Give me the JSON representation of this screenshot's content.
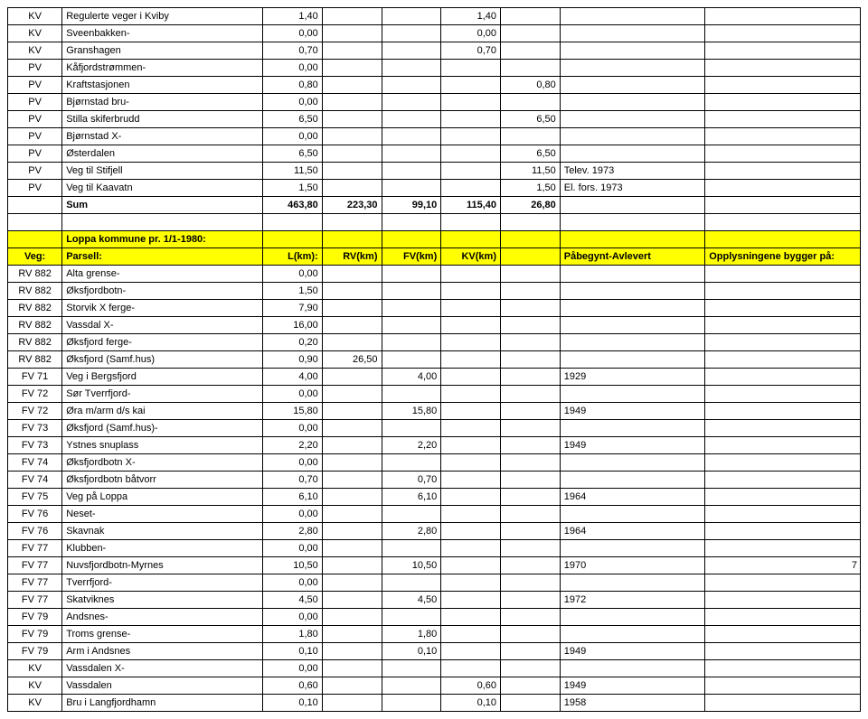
{
  "colors": {
    "header_bg": "#ffff00",
    "border": "#000000",
    "bg": "#ffffff",
    "text": "#000000"
  },
  "font": {
    "family": "Arial",
    "size_pt": 8
  },
  "columns": [
    "Veg:",
    "Parsell:",
    "L(km):",
    "RV(km)",
    "FV(km)",
    "KV(km)",
    "",
    "Påbegynt-Avlevert",
    "Opplysningene bygger på:"
  ],
  "page_number": "7",
  "section1": {
    "rows": [
      [
        "KV",
        "Regulerte veger i Kviby",
        "1,40",
        "",
        "",
        "1,40",
        "",
        "",
        ""
      ],
      [
        "KV",
        "Sveenbakken-",
        "0,00",
        "",
        "",
        "0,00",
        "",
        "",
        ""
      ],
      [
        "KV",
        "Granshagen",
        "0,70",
        "",
        "",
        "0,70",
        "",
        "",
        ""
      ],
      [
        "PV",
        "Kåfjordstrømmen-",
        "0,00",
        "",
        "",
        "",
        "",
        "",
        ""
      ],
      [
        "PV",
        "Kraftstasjonen",
        "0,80",
        "",
        "",
        "",
        "0,80",
        "",
        ""
      ],
      [
        "PV",
        "Bjørnstad bru-",
        "0,00",
        "",
        "",
        "",
        "",
        "",
        ""
      ],
      [
        "PV",
        "Stilla skiferbrudd",
        "6,50",
        "",
        "",
        "",
        "6,50",
        "",
        ""
      ],
      [
        "PV",
        "Bjørnstad X-",
        "0,00",
        "",
        "",
        "",
        "",
        "",
        ""
      ],
      [
        "PV",
        "Østerdalen",
        "6,50",
        "",
        "",
        "",
        "6,50",
        "",
        ""
      ],
      [
        "PV",
        "Veg til Stifjell",
        "11,50",
        "",
        "",
        "",
        "11,50",
        "Telev. 1973",
        ""
      ],
      [
        "PV",
        "Veg til Kaavatn",
        "1,50",
        "",
        "",
        "",
        "1,50",
        "El. fors. 1973",
        ""
      ]
    ],
    "sumrow": [
      "",
      "Sum",
      "463,80",
      "223,30",
      "99,10",
      "115,40",
      "26,80",
      "",
      ""
    ]
  },
  "section2": {
    "title": "Loppa kommune pr. 1/1-1980:",
    "header": [
      "Veg:",
      "Parsell:",
      "L(km):",
      "RV(km)",
      "FV(km)",
      "KV(km)",
      "",
      "Påbegynt-Avlevert",
      "Opplysningene bygger på:"
    ],
    "rows": [
      [
        "RV 882",
        "Alta grense-",
        "0,00",
        "",
        "",
        "",
        "",
        "",
        ""
      ],
      [
        "RV 882",
        "Øksfjordbotn-",
        "1,50",
        "",
        "",
        "",
        "",
        "",
        ""
      ],
      [
        "RV 882",
        "Storvik X ferge-",
        "7,90",
        "",
        "",
        "",
        "",
        "",
        ""
      ],
      [
        "RV 882",
        "Vassdal X-",
        "16,00",
        "",
        "",
        "",
        "",
        "",
        ""
      ],
      [
        "RV 882",
        "Øksfjord ferge-",
        "0,20",
        "",
        "",
        "",
        "",
        "",
        ""
      ],
      [
        "RV 882",
        "Øksfjord (Samf.hus)",
        "0,90",
        "26,50",
        "",
        "",
        "",
        "",
        ""
      ],
      [
        "FV 71",
        "Veg i Bergsfjord",
        "4,00",
        "",
        "4,00",
        "",
        "",
        "1929",
        ""
      ],
      [
        "FV 72",
        "Sør Tverrfjord-",
        "0,00",
        "",
        "",
        "",
        "",
        "",
        ""
      ],
      [
        "FV 72",
        "Øra m/arm d/s kai",
        "15,80",
        "",
        "15,80",
        "",
        "",
        "1949",
        ""
      ],
      [
        "FV 73",
        "Øksfjord (Samf.hus)-",
        "0,00",
        "",
        "",
        "",
        "",
        "",
        ""
      ],
      [
        "FV 73",
        "Ystnes snuplass",
        "2,20",
        "",
        "2,20",
        "",
        "",
        "1949",
        ""
      ],
      [
        "FV 74",
        "Øksfjordbotn X-",
        "0,00",
        "",
        "",
        "",
        "",
        "",
        ""
      ],
      [
        "FV 74",
        "Øksfjordbotn båtvorr",
        "0,70",
        "",
        "0,70",
        "",
        "",
        "",
        ""
      ],
      [
        "FV 75",
        "Veg på Loppa",
        "6,10",
        "",
        "6,10",
        "",
        "",
        "1964",
        ""
      ],
      [
        "FV 76",
        "Neset-",
        "0,00",
        "",
        "",
        "",
        "",
        "",
        ""
      ],
      [
        "FV 76",
        "Skavnak",
        "2,80",
        "",
        "2,80",
        "",
        "",
        "1964",
        ""
      ],
      [
        "FV 77",
        "Klubben-",
        "0,00",
        "",
        "",
        "",
        "",
        "",
        ""
      ],
      [
        "FV 77",
        "Nuvsfjordbotn-Myrnes",
        "10,50",
        "",
        "10,50",
        "",
        "",
        "1970",
        ""
      ],
      [
        "FV 77",
        "Tverrfjord-",
        "0,00",
        "",
        "",
        "",
        "",
        "",
        ""
      ],
      [
        "FV 77",
        "Skatviknes",
        "4,50",
        "",
        "4,50",
        "",
        "",
        "1972",
        ""
      ],
      [
        "FV 79",
        "Andsnes-",
        "0,00",
        "",
        "",
        "",
        "",
        "",
        ""
      ],
      [
        "FV 79",
        "Troms grense-",
        "1,80",
        "",
        "1,80",
        "",
        "",
        "",
        ""
      ],
      [
        "FV 79",
        "Arm i Andsnes",
        "0,10",
        "",
        "0,10",
        "",
        "",
        "1949",
        ""
      ],
      [
        "KV",
        "Vassdalen X-",
        "0,00",
        "",
        "",
        "",
        "",
        "",
        ""
      ],
      [
        "KV",
        "Vassdalen",
        "0,60",
        "",
        "",
        "0,60",
        "",
        "1949",
        ""
      ],
      [
        "KV",
        "Bru i Langfjordhamn",
        "0,10",
        "",
        "",
        "0,10",
        "",
        "1958",
        ""
      ]
    ]
  }
}
